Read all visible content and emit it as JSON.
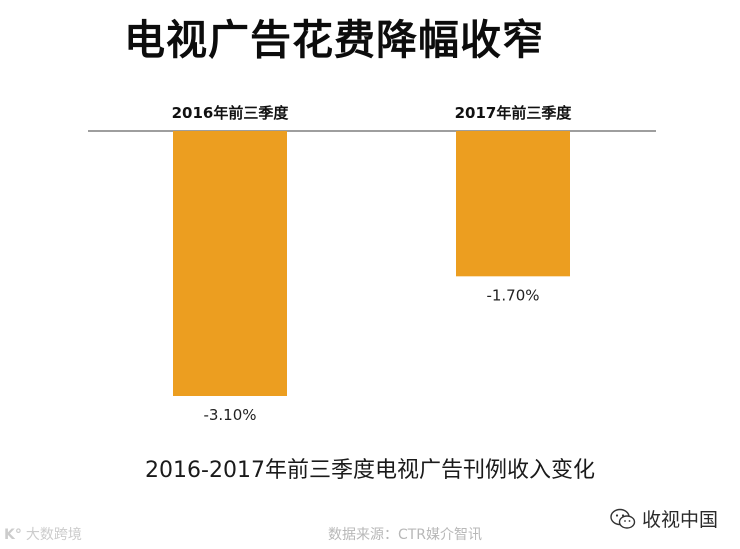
{
  "title": "电视广告花费降幅收窄",
  "caption": "2016-2017年前三季度电视广告刊例收入变化",
  "source": "数据来源：CTR媒介智讯",
  "watermark_left": "大数跨境",
  "watermark_right": "收视中国",
  "icons": {
    "wechat": "wechat-icon",
    "watermark_logo": "logo-icon"
  },
  "colors": {
    "bar": "#ec9e20",
    "baseline": "#7f7f7f"
  },
  "chart_data": {
    "type": "bar",
    "categories": [
      "2016年前三季度",
      "2017年前三季度"
    ],
    "values": [
      -3.1,
      -1.7
    ],
    "value_labels": [
      "-3.10%",
      "-1.70%"
    ],
    "ylim": [
      -3.3,
      0
    ],
    "grid": false
  }
}
